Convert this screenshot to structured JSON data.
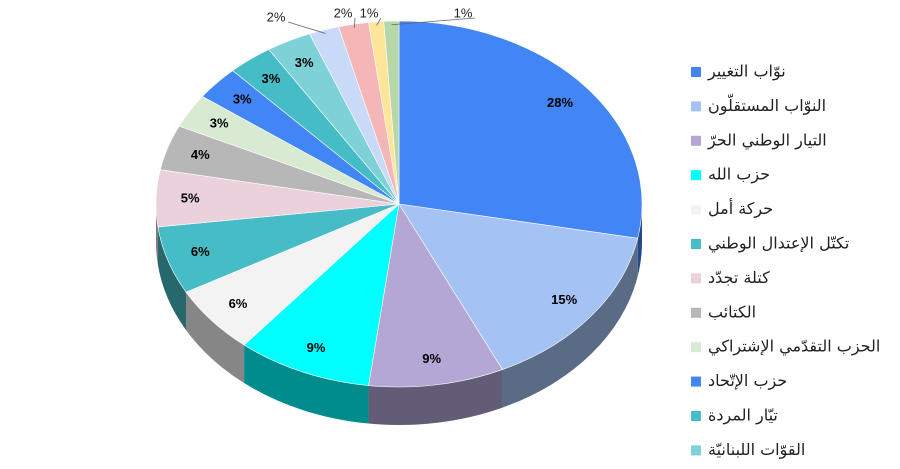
{
  "chart_data": {
    "type": "pie",
    "categories": [
      "نوّاب التغيير",
      "النوّاب المستقلّون",
      "التيار الوطني الحرّ",
      "حزب الله",
      "حركة أمل",
      "تكتّل الإعتدال الوطني",
      "كتلة تجدّد",
      "الكتائب",
      "الحزب التقدّمي الإشتراكي",
      "حزب الإتّحاد",
      "تيّار المردة",
      "القوّات اللبنانيّة",
      null,
      null,
      null,
      null
    ],
    "values": [
      28,
      15,
      9,
      9,
      6,
      6,
      5,
      4,
      3,
      3,
      3,
      3,
      2,
      2,
      1,
      1
    ],
    "value_labels": [
      "28%",
      "15%",
      "9%",
      "9%",
      "6%",
      "6%",
      "5%",
      "4%",
      "3%",
      "3%",
      "3%",
      "3%",
      "2%",
      "2%",
      "1%",
      "1%"
    ],
    "colors": [
      "#4285f4",
      "#a4c2f4",
      "#b4a7d6",
      "#00ffff",
      "#f3f3f3",
      "#46bdc6",
      "#ead1dc",
      "#b7b7b7",
      "#d9ead3",
      "#4285f4",
      "#46bdc6",
      "#7fd1d8",
      "#c9daf8",
      "#f4b6b6",
      "#ffe599",
      "#b6d7a8"
    ]
  }
}
